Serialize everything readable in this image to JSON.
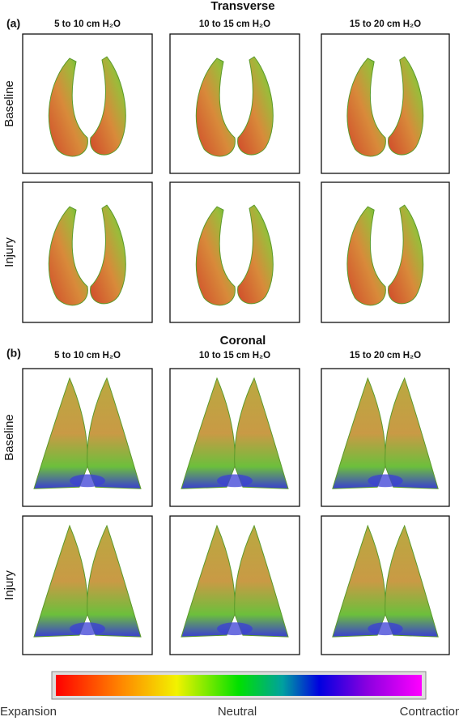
{
  "panels": [
    {
      "label": "(a)",
      "title": "Transverse",
      "columns": [
        "5 to 10 cm H₂O",
        "10 to 15 cm H₂O",
        "15 to 20 cm H₂O"
      ],
      "rows": [
        "Baseline",
        "Injury"
      ]
    },
    {
      "label": "(b)",
      "title": "Coronal",
      "columns": [
        "5 to 10 cm H₂O",
        "10 to 15 cm H₂O",
        "15 to 20 cm H₂O"
      ],
      "rows": [
        "Baseline",
        "Injury"
      ]
    }
  ],
  "colorbar": {
    "labels": [
      "Expansion",
      "Neutral",
      "Contraction"
    ]
  }
}
